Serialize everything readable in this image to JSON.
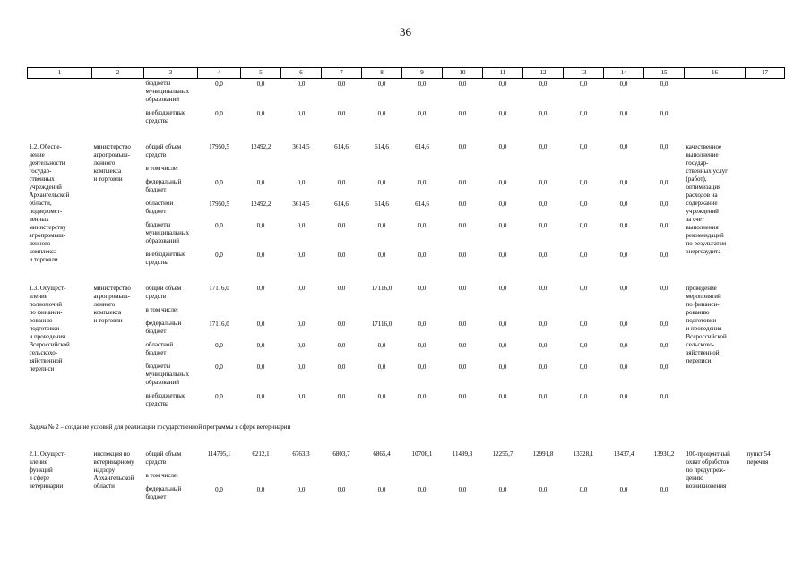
{
  "page_number": "36",
  "table": {
    "column_numbers": [
      "1",
      "2",
      "3",
      "4",
      "5",
      "6",
      "7",
      "8",
      "9",
      "10",
      "11",
      "12",
      "13",
      "14",
      "15",
      "16",
      "17"
    ],
    "task_heading": "Задача № 2 – создание условий для реализации государственной программы в сфере ветеринарии",
    "sections": [
      {
        "item": "",
        "executor": "",
        "expected_result": "",
        "note": "",
        "rows": [
          {
            "label": "бюджеты\nмуниципальных\nобразований",
            "values": [
              "0,0",
              "0,0",
              "0,0",
              "0,0",
              "0,0",
              "0,0",
              "0,0",
              "0,0",
              "0,0",
              "0,0",
              "0,0",
              "0,0"
            ]
          },
          {
            "label": "внебюджетные\nсредства",
            "values": [
              "0,0",
              "0,0",
              "0,0",
              "0,0",
              "0,0",
              "0,0",
              "0,0",
              "0,0",
              "0,0",
              "0,0",
              "0,0",
              "0,0"
            ]
          }
        ]
      },
      {
        "item": "1.2. Обеспе-\nчение\nдеятельности\nгосудар-\nственных\nучреждений\nАрхангельской\nобласти,\nподведомст-\nвенных\nминистерству\nагропромыш-\nленного\nкомплекса\nи торговли",
        "executor": "министерство\nагропромыш-\nленного\nкомплекса\nи торговли",
        "expected_result": "качественное\nвыполнение\nгосудар-\nственных услуг\n(работ),\nоптимизация\nрасходов на\nсодержание\nучреждений\nза счет\nвыполнения\nрекомендаций\nпо результатам\nэнергоаудита",
        "note": "",
        "rows": [
          {
            "label": "общий объем\nсредств",
            "values": [
              "17950,5",
              "12492,2",
              "3614,5",
              "614,6",
              "614,6",
              "614,6",
              "0,0",
              "0,0",
              "0,0",
              "0,0",
              "0,0",
              "0,0"
            ]
          },
          {
            "label": "в том числе:",
            "values": []
          },
          {
            "label": "федеральный\nбюджет",
            "values": [
              "0,0",
              "0,0",
              "0,0",
              "0,0",
              "0,0",
              "0,0",
              "0,0",
              "0,0",
              "0,0",
              "0,0",
              "0,0",
              "0,0"
            ]
          },
          {
            "label": "областной\nбюджет",
            "values": [
              "17950,5",
              "12492,2",
              "3614,5",
              "614,6",
              "614,6",
              "614,6",
              "0,0",
              "0,0",
              "0,0",
              "0,0",
              "0,0",
              "0,0"
            ]
          },
          {
            "label": "бюджеты\nмуниципальных\nобразований",
            "values": [
              "0,0",
              "0,0",
              "0,0",
              "0,0",
              "0,0",
              "0,0",
              "0,0",
              "0,0",
              "0,0",
              "0,0",
              "0,0",
              "0,0"
            ]
          },
          {
            "label": "внебюджетные\nсредства",
            "values": [
              "0,0",
              "0,0",
              "0,0",
              "0,0",
              "0,0",
              "0,0",
              "0,0",
              "0,0",
              "0,0",
              "0,0",
              "0,0",
              "0,0"
            ]
          }
        ]
      },
      {
        "item": "1.3. Осущест-\nвление\nполномочий\nпо финанси-\nрованию\nподготовки\nи проведения\nВсероссийской\nсельскохо-\nзяйственной\nпереписи",
        "executor": "министерство\nагропромыш-\nленного\nкомплекса\nи торговли",
        "expected_result": "проведение\nмероприятий\nпо финанси-\nрованию\nподготовки\nи проведения\nВсероссийской\nсельскохо-\nзяйственной\nпереписи",
        "note": "",
        "rows": [
          {
            "label": "общий объем\nсредств",
            "values": [
              "17116,0",
              "0,0",
              "0,0",
              "0,0",
              "17116,0",
              "0,0",
              "0,0",
              "0,0",
              "0,0",
              "0,0",
              "0,0",
              "0,0"
            ]
          },
          {
            "label": "в том числе:",
            "values": []
          },
          {
            "label": "федеральный\nбюджет",
            "values": [
              "17116,0",
              "0,0",
              "0,0",
              "0,0",
              "17116,0",
              "0,0",
              "0,0",
              "0,0",
              "0,0",
              "0,0",
              "0,0",
              "0,0"
            ]
          },
          {
            "label": "областной\nбюджет",
            "values": [
              "0,0",
              "0,0",
              "0,0",
              "0,0",
              "0,0",
              "0,0",
              "0,0",
              "0,0",
              "0,0",
              "0,0",
              "0,0",
              "0,0"
            ]
          },
          {
            "label": "бюджеты\nмуниципальных\nобразований",
            "values": [
              "0,0",
              "0,0",
              "0,0",
              "0,0",
              "0,0",
              "0,0",
              "0,0",
              "0,0",
              "0,0",
              "0,0",
              "0,0",
              "0,0"
            ]
          },
          {
            "label": "внебюджетные\nсредства",
            "values": [
              "0,0",
              "0,0",
              "0,0",
              "0,0",
              "0,0",
              "0,0",
              "0,0",
              "0,0",
              "0,0",
              "0,0",
              "0,0",
              "0,0"
            ]
          }
        ]
      },
      {
        "item": "2.1. Осущест-\nвление\nфункций\nв сфере\nветеринарии",
        "executor": "инспекция по\nветеринарному\nнадзору\nАрхангельской\nобласти",
        "expected_result": "100-процентный\nохват обработок\nпо предупреж-\nдению\nвозникновения",
        "note": "пункт 54\nперечня",
        "rows": [
          {
            "label": "общий объем\nсредств",
            "values": [
              "114795,1",
              "6212,1",
              "6763,3",
              "6803,7",
              "6865,4",
              "10708,1",
              "11499,3",
              "12255,7",
              "12991,8",
              "13328,1",
              "13437,4",
              "13930,2"
            ]
          },
          {
            "label": "в том числе:",
            "values": []
          },
          {
            "label": "федеральный\nбюджет",
            "values": [
              "0,0",
              "0,0",
              "0,0",
              "0,0",
              "0,0",
              "0,0",
              "0,0",
              "0,0",
              "0,0",
              "0,0",
              "0,0",
              "0,0"
            ]
          }
        ]
      }
    ]
  }
}
